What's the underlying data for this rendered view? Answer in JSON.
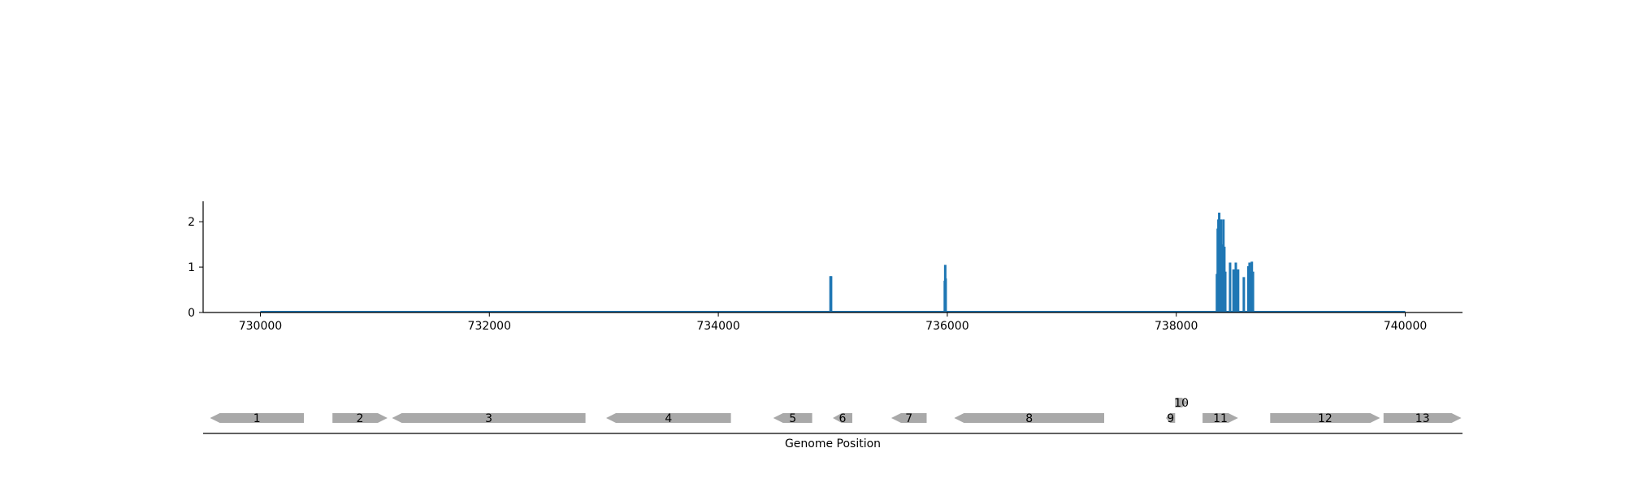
{
  "chart_data": [
    {
      "type": "bar",
      "title": "",
      "xlabel": "",
      "ylabel": "",
      "xlim": [
        729500,
        740500
      ],
      "ylim": [
        0,
        2.45
      ],
      "x_ticks": [
        730000,
        732000,
        734000,
        736000,
        738000,
        740000
      ],
      "y_ticks": [
        0,
        1,
        2
      ],
      "grid": false,
      "color": "#1f77b4",
      "baseline": {
        "x_start": 730000,
        "x_end": 740000,
        "value": 0
      },
      "x": [
        734980,
        734985,
        735978,
        735982,
        735986,
        738355,
        738362,
        738368,
        738375,
        738382,
        738390,
        738398,
        738405,
        738412,
        738420,
        738428,
        738470,
        738500,
        738520,
        738540,
        738590,
        738630,
        738640,
        738650,
        738660,
        738670
      ],
      "values": [
        0.8,
        0.8,
        0.7,
        1.05,
        0.75,
        0.85,
        1.85,
        2.05,
        2.2,
        1.95,
        2.05,
        1.5,
        0.9,
        2.05,
        1.45,
        0.9,
        1.1,
        0.95,
        1.1,
        0.95,
        0.78,
        1.02,
        1.1,
        0.9,
        1.12,
        0.9
      ]
    },
    {
      "type": "gene_track",
      "xlabel": "Genome Position",
      "xlim": [
        729500,
        740500
      ],
      "color": "#a9a9a9",
      "genes": [
        {
          "label": "1",
          "start": 729560,
          "end": 730380,
          "strand": "-",
          "row": 0
        },
        {
          "label": "2",
          "start": 730630,
          "end": 731110,
          "strand": "+",
          "row": 0
        },
        {
          "label": "3",
          "start": 731150,
          "end": 732840,
          "strand": "-",
          "row": 0
        },
        {
          "label": "4",
          "start": 733020,
          "end": 734110,
          "strand": "-",
          "row": 0
        },
        {
          "label": "5",
          "start": 734480,
          "end": 734820,
          "strand": "-",
          "row": 0
        },
        {
          "label": "6",
          "start": 735000,
          "end": 735170,
          "strand": "-",
          "row": 0
        },
        {
          "label": "7",
          "start": 735510,
          "end": 735820,
          "strand": "-",
          "row": 0
        },
        {
          "label": "8",
          "start": 736060,
          "end": 737370,
          "strand": "-",
          "row": 0
        },
        {
          "label": "9",
          "start": 737910,
          "end": 737990,
          "strand": "-",
          "row": 0
        },
        {
          "label": "10",
          "start": 737990,
          "end": 738100,
          "strand": "+",
          "row": 1
        },
        {
          "label": "11",
          "start": 738230,
          "end": 738540,
          "strand": "+",
          "row": 0
        },
        {
          "label": "12",
          "start": 738820,
          "end": 739780,
          "strand": "+",
          "row": 0
        },
        {
          "label": "13",
          "start": 739810,
          "end": 740490,
          "strand": "+",
          "row": 0
        }
      ]
    }
  ]
}
